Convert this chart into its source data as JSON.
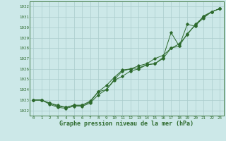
{
  "title": "Graphe pression niveau de la mer (hPa)",
  "bg_color": "#cce8e8",
  "grid_color": "#aacccc",
  "line_color": "#2d6a2d",
  "xlim": [
    -0.5,
    23.5
  ],
  "ylim": [
    1021.5,
    1032.5
  ],
  "yticks": [
    1022,
    1023,
    1024,
    1025,
    1026,
    1027,
    1028,
    1029,
    1030,
    1031,
    1032
  ],
  "xticks": [
    0,
    1,
    2,
    3,
    4,
    5,
    6,
    7,
    8,
    9,
    10,
    11,
    12,
    13,
    14,
    15,
    16,
    17,
    18,
    19,
    20,
    21,
    22,
    23
  ],
  "line1": [
    1023.0,
    1023.0,
    1022.7,
    1022.5,
    1022.3,
    1022.5,
    1022.5,
    1022.8,
    1023.8,
    1024.0,
    1025.0,
    1025.8,
    1026.0,
    1026.1,
    1026.4,
    1026.5,
    1027.1,
    1029.5,
    1028.2,
    1030.3,
    1030.1,
    1031.1,
    1031.5,
    1031.8
  ],
  "line2": [
    1023.0,
    1023.0,
    1022.7,
    1022.4,
    1022.3,
    1022.5,
    1022.5,
    1022.9,
    1023.8,
    1024.4,
    1025.2,
    1025.9,
    1026.0,
    1026.3,
    1026.5,
    1027.0,
    1027.3,
    1028.0,
    1028.4,
    1029.3,
    1030.3,
    1031.0,
    1031.5,
    1031.8
  ],
  "line3": [
    1023.0,
    1023.0,
    1022.6,
    1022.3,
    1022.2,
    1022.4,
    1022.4,
    1022.7,
    1023.5,
    1024.0,
    1024.9,
    1025.3,
    1025.8,
    1026.0,
    1026.4,
    1026.5,
    1027.0,
    1028.0,
    1028.2,
    1029.4,
    1030.2,
    1030.9,
    1031.5,
    1031.8
  ],
  "title_fontsize": 6.0,
  "tick_fontsize": 4.2
}
